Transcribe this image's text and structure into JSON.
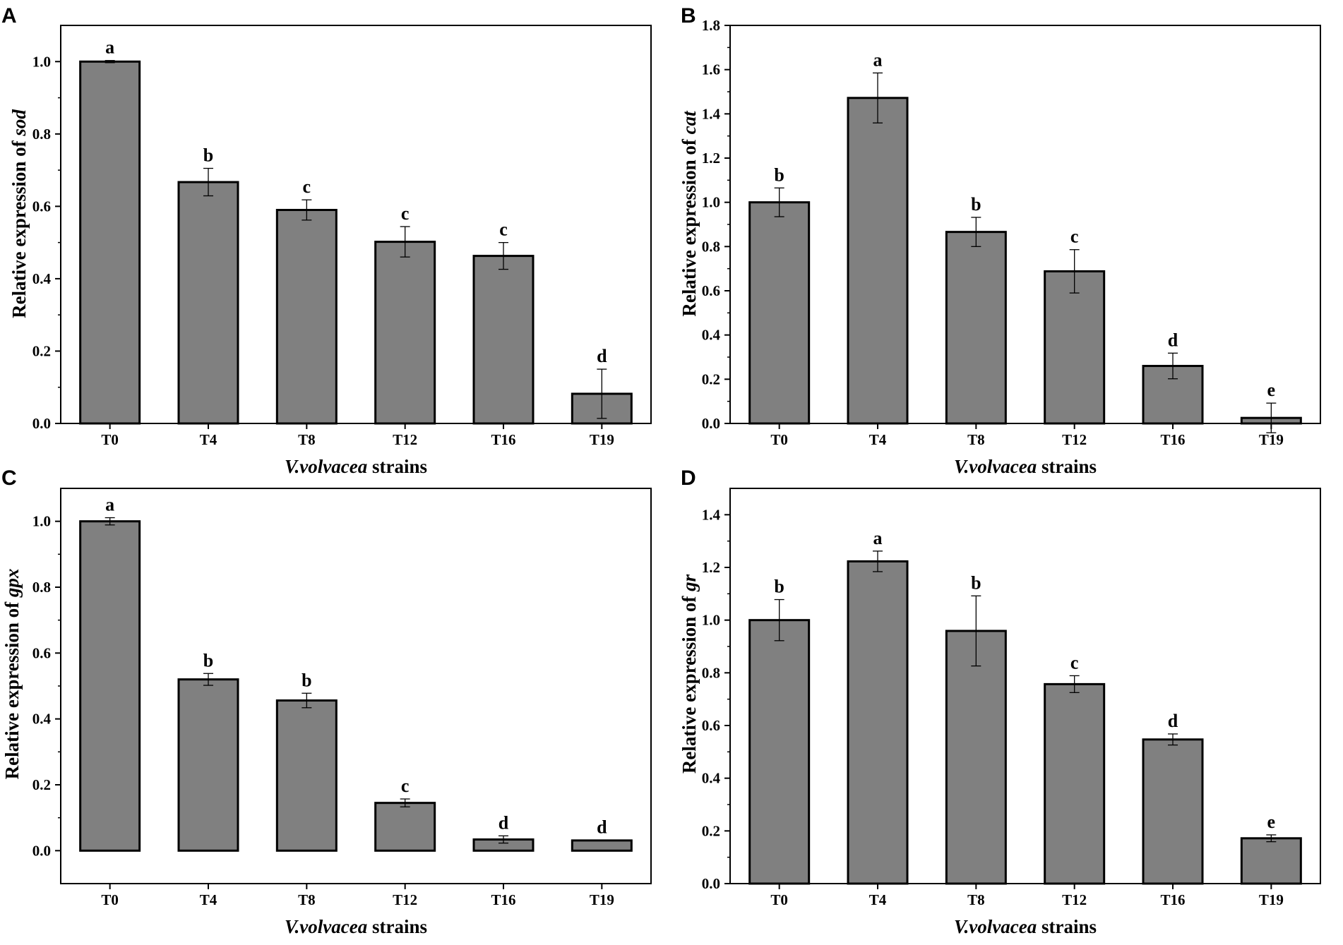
{
  "colors": {
    "bar_fill": "#808080",
    "bar_stroke": "#000000",
    "axis": "#000000"
  },
  "chart_data": [
    {
      "panel": "A",
      "type": "bar",
      "categories": [
        "T0",
        "T4",
        "T8",
        "T12",
        "T16",
        "T19"
      ],
      "values": [
        1.0,
        0.667,
        0.59,
        0.502,
        0.463,
        0.082
      ],
      "errors": [
        0.003,
        0.038,
        0.028,
        0.042,
        0.037,
        0.068
      ],
      "significance": [
        "a",
        "b",
        "c",
        "c",
        "c",
        "d"
      ],
      "ylim": [
        0,
        1.1
      ],
      "yticks": [
        0.0,
        0.2,
        0.4,
        0.6,
        0.8,
        1.0
      ],
      "ytick_labels": [
        "0.0",
        "0.2",
        "0.4",
        "0.6",
        "0.8",
        "1.0"
      ],
      "ylabel_prefix": "Relative expression of ",
      "ylabel_gene": "sod",
      "xlabel_italic": "V.volvacea",
      "xlabel_rest": " strains"
    },
    {
      "panel": "B",
      "type": "bar",
      "categories": [
        "T0",
        "T4",
        "T8",
        "T12",
        "T16",
        "T19"
      ],
      "values": [
        1.0,
        1.472,
        0.866,
        0.688,
        0.26,
        0.025
      ],
      "errors": [
        0.065,
        0.113,
        0.066,
        0.098,
        0.058,
        0.067
      ],
      "significance": [
        "b",
        "a",
        "b",
        "c",
        "d",
        "e"
      ],
      "ylim": [
        0,
        1.8
      ],
      "yticks": [
        0.0,
        0.2,
        0.4,
        0.6,
        0.8,
        1.0,
        1.2,
        1.4,
        1.6,
        1.8
      ],
      "ytick_labels": [
        "0.0",
        "0.2",
        "0.4",
        "0.6",
        "0.8",
        "1.0",
        "1.2",
        "1.4",
        "1.6",
        "1.8"
      ],
      "ylabel_prefix": "Relative expression of ",
      "ylabel_gene": "cat",
      "xlabel_italic": "V.volvacea",
      "xlabel_rest": " strains"
    },
    {
      "panel": "C",
      "type": "bar",
      "categories": [
        "T0",
        "T4",
        "T8",
        "T12",
        "T16",
        "T19"
      ],
      "values": [
        1.0,
        0.52,
        0.456,
        0.145,
        0.034,
        0.031
      ],
      "errors": [
        0.011,
        0.018,
        0.022,
        0.012,
        0.011,
        0.001
      ],
      "significance": [
        "a",
        "b",
        "b",
        "c",
        "d",
        "d"
      ],
      "ylim": [
        -0.1,
        1.1
      ],
      "yticks": [
        0.0,
        0.2,
        0.4,
        0.6,
        0.8,
        1.0
      ],
      "ytick_labels": [
        "0.0",
        "0.2",
        "0.4",
        "0.6",
        "0.8",
        "1.0"
      ],
      "ylabel_prefix": "Relative expression of ",
      "ylabel_gene": "gpx",
      "xlabel_italic": "V.volvacea",
      "xlabel_rest": " strains"
    },
    {
      "panel": "D",
      "type": "bar",
      "categories": [
        "T0",
        "T4",
        "T8",
        "T12",
        "T16",
        "T19"
      ],
      "values": [
        1.0,
        1.223,
        0.959,
        0.757,
        0.547,
        0.172
      ],
      "errors": [
        0.078,
        0.039,
        0.133,
        0.032,
        0.021,
        0.013
      ],
      "significance": [
        "b",
        "a",
        "b",
        "c",
        "d",
        "e"
      ],
      "ylim": [
        0,
        1.5
      ],
      "yticks": [
        0.0,
        0.2,
        0.4,
        0.6,
        0.8,
        1.0,
        1.2,
        1.4
      ],
      "ytick_labels": [
        "0.0",
        "0.2",
        "0.4",
        "0.6",
        "0.8",
        "1.0",
        "1.2",
        "1.4"
      ],
      "ylabel_prefix": "Relative expression of ",
      "ylabel_gene": "gr",
      "xlabel_italic": "V.volvacea",
      "xlabel_rest": " strains"
    }
  ]
}
